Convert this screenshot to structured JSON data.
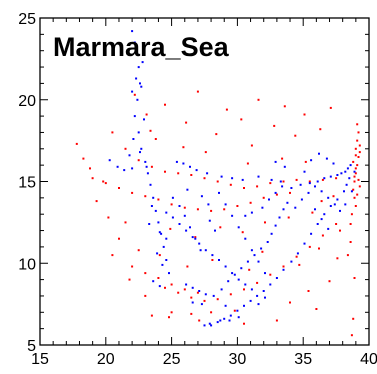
{
  "chart_data": {
    "type": "scatter",
    "title": "Marmara_Sea",
    "xlabel": "",
    "ylabel": "",
    "xlim": [
      15,
      40
    ],
    "ylim": [
      5,
      25
    ],
    "x_ticks": [
      15,
      20,
      25,
      30,
      35,
      40
    ],
    "y_ticks": [
      5,
      10,
      15,
      20,
      25
    ],
    "x_tick_labels": [
      "15",
      "20",
      "25",
      "30",
      "35",
      "40"
    ],
    "y_tick_labels": [
      "5",
      "10",
      "15",
      "20",
      "25"
    ],
    "grid": false,
    "legend": "none",
    "series": [
      {
        "color": "#ff0000",
        "points": [
          [
            38.9,
            15.0
          ],
          [
            39.0,
            15.5
          ],
          [
            39.1,
            16.0
          ],
          [
            38.8,
            14.5
          ],
          [
            39.2,
            16.5
          ],
          [
            39.0,
            17.0
          ],
          [
            39.1,
            17.5
          ],
          [
            38.9,
            14.0
          ],
          [
            39.3,
            16.8
          ],
          [
            39.0,
            13.5
          ],
          [
            38.7,
            13.0
          ],
          [
            39.2,
            18.0
          ],
          [
            39.1,
            18.5
          ],
          [
            39.0,
            15.8
          ],
          [
            38.9,
            15.3
          ],
          [
            39.2,
            15.1
          ],
          [
            39.3,
            14.7
          ],
          [
            38.8,
            16.2
          ],
          [
            39.1,
            14.2
          ],
          [
            39.0,
            16.6
          ],
          [
            39.3,
            17.2
          ],
          [
            38.6,
            12.4
          ],
          [
            38.6,
            11.3
          ],
          [
            38.9,
            9.1
          ],
          [
            38.8,
            6.6
          ],
          [
            38.7,
            5.6
          ],
          [
            38.4,
            10.5
          ],
          [
            37.8,
            12.0
          ],
          [
            20.5,
            18.0
          ],
          [
            21.5,
            17.0
          ],
          [
            22.5,
            16.3
          ],
          [
            23.5,
            15.9
          ],
          [
            24.5,
            15.6
          ],
          [
            25.5,
            15.5
          ],
          [
            26.5,
            15.4
          ],
          [
            27.5,
            15.2
          ],
          [
            28.5,
            15.0
          ],
          [
            29.5,
            14.8
          ],
          [
            30.5,
            14.6
          ],
          [
            31.5,
            14.7
          ],
          [
            32.5,
            14.9
          ],
          [
            33.5,
            15.0
          ],
          [
            34.5,
            15.1
          ],
          [
            35.5,
            15.0
          ],
          [
            36.5,
            15.1
          ],
          [
            37.5,
            15.2
          ],
          [
            19.0,
            15.2
          ],
          [
            20.0,
            14.9
          ],
          [
            21.0,
            14.6
          ],
          [
            22.0,
            14.3
          ],
          [
            23.0,
            14.1
          ],
          [
            24.0,
            13.9
          ],
          [
            25.0,
            13.6
          ],
          [
            26.0,
            13.4
          ],
          [
            27.0,
            13.3
          ],
          [
            28.0,
            13.2
          ],
          [
            29.0,
            13.3
          ],
          [
            30.0,
            13.5
          ],
          [
            31.0,
            13.7
          ],
          [
            32.0,
            14.0
          ],
          [
            33.0,
            14.2
          ],
          [
            34.0,
            14.3
          ],
          [
            24.5,
            8.5
          ],
          [
            25.5,
            8.2
          ],
          [
            26.5,
            7.9
          ],
          [
            27.5,
            7.7
          ],
          [
            28.5,
            7.8
          ],
          [
            29.5,
            8.1
          ],
          [
            30.5,
            8.4
          ],
          [
            31.5,
            8.8
          ],
          [
            32.5,
            9.3
          ],
          [
            33.5,
            9.8
          ],
          [
            34.5,
            10.4
          ],
          [
            35.5,
            11.0
          ],
          [
            36.5,
            11.7
          ],
          [
            37.5,
            12.4
          ],
          [
            22.0,
            9.8
          ],
          [
            23.0,
            9.4
          ],
          [
            24.0,
            9.1
          ],
          [
            25.0,
            8.7
          ],
          [
            26.0,
            8.4
          ],
          [
            27.0,
            8.2
          ],
          [
            23.5,
            6.8
          ],
          [
            25.0,
            7.0
          ],
          [
            26.5,
            6.9
          ],
          [
            28.0,
            7.0
          ],
          [
            30.5,
            6.3
          ],
          [
            33.0,
            6.5
          ],
          [
            21.5,
            12.5
          ],
          [
            21.0,
            11.5
          ],
          [
            22.5,
            10.8
          ],
          [
            20.5,
            10.5
          ],
          [
            21.8,
            9.0
          ],
          [
            23.0,
            8.0
          ],
          [
            17.8,
            17.3
          ],
          [
            18.3,
            16.4
          ],
          [
            18.8,
            15.8
          ],
          [
            19.8,
            15.0
          ],
          [
            19.3,
            13.8
          ],
          [
            20.2,
            12.8
          ],
          [
            22.2,
            20.3
          ],
          [
            23.1,
            19.1
          ],
          [
            24.5,
            19.7
          ],
          [
            26.1,
            18.6
          ],
          [
            27.0,
            20.5
          ],
          [
            28.4,
            17.9
          ],
          [
            29.2,
            19.4
          ],
          [
            30.3,
            18.8
          ],
          [
            31.6,
            20.0
          ],
          [
            32.8,
            18.4
          ],
          [
            33.6,
            19.6
          ],
          [
            34.4,
            17.8
          ],
          [
            35.1,
            19.1
          ],
          [
            36.3,
            18.2
          ],
          [
            37.1,
            19.5
          ],
          [
            31.1,
            17.2
          ],
          [
            25.9,
            17.1
          ],
          [
            23.8,
            17.6
          ],
          [
            24.9,
            12.1
          ],
          [
            26.8,
            11.6
          ],
          [
            28.7,
            12.2
          ],
          [
            30.4,
            11.9
          ],
          [
            32.1,
            12.5
          ],
          [
            33.9,
            12.8
          ],
          [
            35.7,
            13.1
          ],
          [
            36.4,
            13.8
          ],
          [
            37.3,
            14.1
          ],
          [
            28.1,
            10.2
          ],
          [
            31.9,
            10.7
          ],
          [
            34.7,
            9.9
          ],
          [
            36.2,
            10.9
          ],
          [
            37.6,
            10.3
          ],
          [
            30.9,
            9.6
          ],
          [
            26.2,
            9.8
          ],
          [
            24.1,
            10.5
          ],
          [
            35.4,
            8.3
          ],
          [
            37.0,
            8.9
          ],
          [
            34.0,
            7.6
          ],
          [
            36.0,
            7.2
          ],
          [
            29.8,
            7.1
          ],
          [
            27.1,
            6.5
          ],
          [
            24.8,
            6.7
          ],
          [
            33.4,
            16.4
          ],
          [
            35.2,
            16.2
          ],
          [
            30.8,
            16.1
          ],
          [
            27.6,
            16.8
          ],
          [
            23.4,
            18.1
          ]
        ]
      },
      {
        "color": "#0000ff",
        "points": [
          [
            22.0,
            24.2
          ],
          [
            22.2,
            23.5
          ],
          [
            22.4,
            22.8
          ],
          [
            22.5,
            22.0
          ],
          [
            22.6,
            21.0
          ],
          [
            22.4,
            20.0
          ],
          [
            22.2,
            19.0
          ],
          [
            22.5,
            18.0
          ],
          [
            22.7,
            17.0
          ],
          [
            23.0,
            16.2
          ],
          [
            23.2,
            15.5
          ],
          [
            23.4,
            14.8
          ],
          [
            23.6,
            14.0
          ],
          [
            23.8,
            13.2
          ],
          [
            24.0,
            12.5
          ],
          [
            24.2,
            11.8
          ],
          [
            24.4,
            11.0
          ],
          [
            24.6,
            10.2
          ],
          [
            24.8,
            9.4
          ],
          [
            22.0,
            20.5
          ],
          [
            22.7,
            20.8
          ],
          [
            22.3,
            21.3
          ],
          [
            22.8,
            22.3
          ],
          [
            22.1,
            17.6
          ],
          [
            22.9,
            18.8
          ],
          [
            21.8,
            16.6
          ],
          [
            22.6,
            16.8
          ],
          [
            20.3,
            16.3
          ],
          [
            20.9,
            15.9
          ],
          [
            21.4,
            15.7
          ],
          [
            22.0,
            15.8
          ],
          [
            23.1,
            15.9
          ],
          [
            25.4,
            16.2
          ],
          [
            25.9,
            16.1
          ],
          [
            26.4,
            15.9
          ],
          [
            26.9,
            15.7
          ],
          [
            27.7,
            15.5
          ],
          [
            28.8,
            15.3
          ],
          [
            29.6,
            15.2
          ],
          [
            30.4,
            15.1
          ],
          [
            31.6,
            15.3
          ],
          [
            32.6,
            15.1
          ],
          [
            33.3,
            15.0
          ],
          [
            34.1,
            14.6
          ],
          [
            34.8,
            14.8
          ],
          [
            35.5,
            14.9
          ],
          [
            36.1,
            15.0
          ],
          [
            36.6,
            15.2
          ],
          [
            37.1,
            15.3
          ],
          [
            37.6,
            15.4
          ],
          [
            37.9,
            15.5
          ],
          [
            38.2,
            15.6
          ],
          [
            38.4,
            15.8
          ],
          [
            38.6,
            16.0
          ],
          [
            38.5,
            15.2
          ],
          [
            38.3,
            14.8
          ],
          [
            38.1,
            14.4
          ],
          [
            37.6,
            13.9
          ],
          [
            37.1,
            13.5
          ],
          [
            36.6,
            13.0
          ],
          [
            36.1,
            12.4
          ],
          [
            35.6,
            11.8
          ],
          [
            35.1,
            11.2
          ],
          [
            34.6,
            10.6
          ],
          [
            34.1,
            10.1
          ],
          [
            33.5,
            9.6
          ],
          [
            33.0,
            9.1
          ],
          [
            32.5,
            8.7
          ],
          [
            32.0,
            8.3
          ],
          [
            31.5,
            8.0
          ],
          [
            31.0,
            7.7
          ],
          [
            30.5,
            7.4
          ],
          [
            30.0,
            7.1
          ],
          [
            29.5,
            6.8
          ],
          [
            29.0,
            6.6
          ],
          [
            28.5,
            6.4
          ],
          [
            28.0,
            6.2
          ],
          [
            27.5,
            6.2
          ],
          [
            27.9,
            6.3
          ],
          [
            28.7,
            6.5
          ],
          [
            29.4,
            6.5
          ],
          [
            30.1,
            6.7
          ],
          [
            26.1,
            8.7
          ],
          [
            26.6,
            8.5
          ],
          [
            27.1,
            8.3
          ],
          [
            27.6,
            8.1
          ],
          [
            28.2,
            8.0
          ],
          [
            28.8,
            8.4
          ],
          [
            29.3,
            8.9
          ],
          [
            29.8,
            9.3
          ],
          [
            30.3,
            9.7
          ],
          [
            30.8,
            10.1
          ],
          [
            31.3,
            10.5
          ],
          [
            31.8,
            10.9
          ],
          [
            32.3,
            11.3
          ],
          [
            32.6,
            11.8
          ],
          [
            32.9,
            12.3
          ],
          [
            33.2,
            12.8
          ],
          [
            33.5,
            13.3
          ],
          [
            33.8,
            13.7
          ],
          [
            24.6,
            13.1
          ],
          [
            25.1,
            12.8
          ],
          [
            25.6,
            12.4
          ],
          [
            26.1,
            12.0
          ],
          [
            26.6,
            11.6
          ],
          [
            27.1,
            11.2
          ],
          [
            27.6,
            10.8
          ],
          [
            28.1,
            10.5
          ],
          [
            28.6,
            10.2
          ],
          [
            29.1,
            9.8
          ],
          [
            29.6,
            9.4
          ],
          [
            30.1,
            9.0
          ],
          [
            30.6,
            8.7
          ],
          [
            31.1,
            8.4
          ],
          [
            28.6,
            14.3
          ],
          [
            29.1,
            13.6
          ],
          [
            29.6,
            12.9
          ],
          [
            30.1,
            12.2
          ],
          [
            30.6,
            11.5
          ],
          [
            31.1,
            10.8
          ],
          [
            31.6,
            10.1
          ],
          [
            32.1,
            9.4
          ],
          [
            25.1,
            14.0
          ],
          [
            25.6,
            13.5
          ],
          [
            26.0,
            12.9
          ],
          [
            26.4,
            12.2
          ],
          [
            26.8,
            11.5
          ],
          [
            27.2,
            10.8
          ],
          [
            24.1,
            11.9
          ],
          [
            24.6,
            11.5
          ],
          [
            31.9,
            13.4
          ],
          [
            32.4,
            13.9
          ],
          [
            32.9,
            14.3
          ],
          [
            33.4,
            14.7
          ],
          [
            34.4,
            13.4
          ],
          [
            34.9,
            13.9
          ],
          [
            35.4,
            14.3
          ],
          [
            35.9,
            14.7
          ],
          [
            36.4,
            14.4
          ],
          [
            36.9,
            14.0
          ],
          [
            37.4,
            13.6
          ],
          [
            37.8,
            13.2
          ],
          [
            35.9,
            13.3
          ],
          [
            36.4,
            12.7
          ],
          [
            36.9,
            12.1
          ],
          [
            38.2,
            13.6
          ],
          [
            38.7,
            14.4
          ],
          [
            38.9,
            15.6
          ],
          [
            37.3,
            16.1
          ],
          [
            36.8,
            16.4
          ],
          [
            36.2,
            16.7
          ],
          [
            35.6,
            16.3
          ],
          [
            35.1,
            15.6
          ],
          [
            33.6,
            15.9
          ],
          [
            32.9,
            16.2
          ],
          [
            23.6,
            8.9
          ],
          [
            24.1,
            8.6
          ],
          [
            26.6,
            7.6
          ],
          [
            27.3,
            7.5
          ],
          [
            29.1,
            7.4
          ],
          [
            31.6,
            7.5
          ],
          [
            32.1,
            7.9
          ],
          [
            30.6,
            12.9
          ],
          [
            31.1,
            13.1
          ],
          [
            27.9,
            12.6
          ],
          [
            28.3,
            12.0
          ],
          [
            26.2,
            14.5
          ],
          [
            27.3,
            14.1
          ],
          [
            27.8,
            13.6
          ],
          [
            24.3,
            9.9
          ],
          [
            23.9,
            10.6
          ],
          [
            23.3,
            12.4
          ],
          [
            23.5,
            13.5
          ]
        ]
      }
    ]
  }
}
